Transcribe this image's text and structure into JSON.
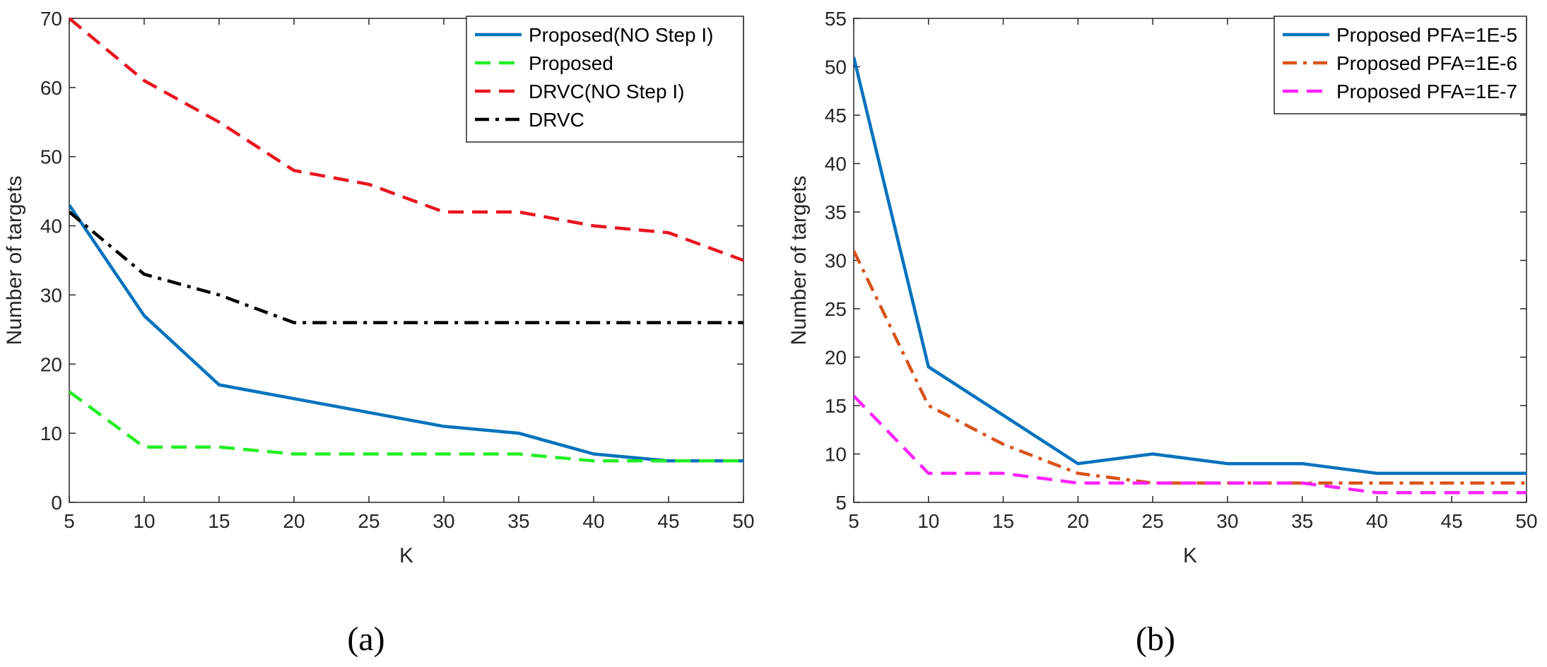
{
  "chart_data": [
    {
      "type": "line",
      "panel": "(a)",
      "xlabel": "K",
      "ylabel": "Number of targets",
      "xlim": [
        5,
        50
      ],
      "ylim": [
        0,
        70
      ],
      "xticks": [
        5,
        10,
        15,
        20,
        25,
        30,
        35,
        40,
        45,
        50
      ],
      "yticks": [
        0,
        10,
        20,
        30,
        40,
        50,
        60,
        70
      ],
      "grid": false,
      "legend_position": "top-right",
      "x": [
        5,
        10,
        15,
        20,
        25,
        30,
        35,
        40,
        45,
        50
      ],
      "series": [
        {
          "name": "Proposed(NO Step I)",
          "values": [
            43,
            27,
            17,
            15,
            13,
            11,
            10,
            7,
            6,
            6
          ],
          "color": "#0072BD",
          "style": "solid"
        },
        {
          "name": "Proposed",
          "values": [
            16,
            8,
            8,
            7,
            7,
            7,
            7,
            6,
            6,
            6
          ],
          "color": "#22EE22",
          "style": "dashed"
        },
        {
          "name": "DRVC(NO Step I)",
          "values": [
            70,
            61,
            55,
            48,
            46,
            42,
            42,
            40,
            39,
            35
          ],
          "color": "#E8141E",
          "style": "dashed"
        },
        {
          "name": "DRVC",
          "values": [
            42,
            33,
            30,
            26,
            26,
            26,
            26,
            26,
            26,
            26
          ],
          "color": "#000000",
          "style": "dashdot"
        }
      ]
    },
    {
      "type": "line",
      "panel": "(b)",
      "xlabel": "K",
      "ylabel": "Number of targets",
      "xlim": [
        5,
        50
      ],
      "ylim": [
        5,
        55
      ],
      "xticks": [
        5,
        10,
        15,
        20,
        25,
        30,
        35,
        40,
        45,
        50
      ],
      "yticks": [
        5,
        10,
        15,
        20,
        25,
        30,
        35,
        40,
        45,
        50,
        55
      ],
      "grid": false,
      "legend_position": "top-right",
      "x": [
        5,
        10,
        15,
        20,
        25,
        30,
        35,
        40,
        45,
        50
      ],
      "series": [
        {
          "name": "Proposed PFA=1E-5",
          "values": [
            51,
            19,
            14,
            9,
            10,
            9,
            9,
            8,
            8,
            8
          ],
          "color": "#0072BD",
          "style": "solid"
        },
        {
          "name": "Proposed PFA=1E-6",
          "values": [
            31,
            15,
            11,
            8,
            7,
            7,
            7,
            7,
            7,
            7
          ],
          "color": "#D95319",
          "style": "dashdot"
        },
        {
          "name": "Proposed PFA=1E-7",
          "values": [
            16,
            8,
            8,
            7,
            7,
            7,
            7,
            6,
            6,
            6
          ],
          "color": "#FF22FF",
          "style": "dashed"
        }
      ]
    }
  ],
  "captions": [
    "(a)",
    "(b)"
  ]
}
